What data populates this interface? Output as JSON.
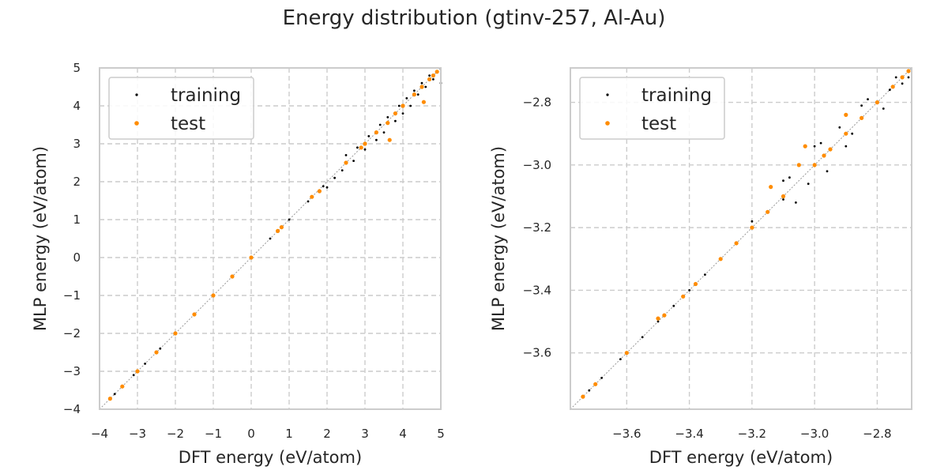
{
  "figure": {
    "title": "Energy distribution (gtinv-257, Al-Au)"
  },
  "colors": {
    "training": "#000000",
    "test": "#ff8c00",
    "grid": "#cccccc",
    "frame": "#cccccc",
    "diagonal": "#999999"
  },
  "chart_data": [
    {
      "type": "scatter",
      "panel": "full-range",
      "xlabel": "DFT energy (eV/atom)",
      "ylabel": "MLP energy (eV/atom)",
      "xlim": [
        -4,
        5
      ],
      "ylim": [
        -4,
        5
      ],
      "xticks": [
        -4,
        -3,
        -2,
        -1,
        0,
        1,
        2,
        3,
        4,
        5
      ],
      "yticks": [
        -4,
        -3,
        -2,
        -1,
        0,
        1,
        2,
        3,
        4,
        5
      ],
      "xtick_labels": [
        "−4",
        "−3",
        "−2",
        "−1",
        "0",
        "1",
        "2",
        "3",
        "4",
        "5"
      ],
      "ytick_labels": [
        "−4",
        "−3",
        "−2",
        "−1",
        "0",
        "1",
        "2",
        "3",
        "4",
        "5"
      ],
      "grid": true,
      "legend_position": "top-left",
      "diagonal": true,
      "series": [
        {
          "name": "training",
          "points": [
            [
              -3.72,
              -3.72
            ],
            [
              -3.6,
              -3.6
            ],
            [
              -3.4,
              -3.41
            ],
            [
              -3.1,
              -3.1
            ],
            [
              -2.8,
              -2.8
            ],
            [
              -2.4,
              -2.4
            ],
            [
              -2.0,
              -2.0
            ],
            [
              -1.5,
              -1.5
            ],
            [
              -1.0,
              -1.0
            ],
            [
              -0.5,
              -0.5
            ],
            [
              0.0,
              0.0
            ],
            [
              0.5,
              0.5
            ],
            [
              1.0,
              1.0
            ],
            [
              1.5,
              1.48
            ],
            [
              1.9,
              1.88
            ],
            [
              2.0,
              1.85
            ],
            [
              2.2,
              2.1
            ],
            [
              2.4,
              2.3
            ],
            [
              2.5,
              2.7
            ],
            [
              2.7,
              2.55
            ],
            [
              2.8,
              2.9
            ],
            [
              3.0,
              2.85
            ],
            [
              3.1,
              3.2
            ],
            [
              3.3,
              3.1
            ],
            [
              3.4,
              3.5
            ],
            [
              3.5,
              3.3
            ],
            [
              3.6,
              3.7
            ],
            [
              3.8,
              3.6
            ],
            [
              3.9,
              4.0
            ],
            [
              4.0,
              3.8
            ],
            [
              4.1,
              4.2
            ],
            [
              4.2,
              4.0
            ],
            [
              4.3,
              4.4
            ],
            [
              4.4,
              4.3
            ],
            [
              4.5,
              4.6
            ],
            [
              4.6,
              4.5
            ],
            [
              4.7,
              4.8
            ],
            [
              4.8,
              4.7
            ],
            [
              4.9,
              4.9
            ],
            [
              5.0,
              4.6
            ]
          ]
        },
        {
          "name": "test",
          "points": [
            [
              -3.72,
              -3.72
            ],
            [
              -3.4,
              -3.4
            ],
            [
              -3.0,
              -3.0
            ],
            [
              -2.5,
              -2.5
            ],
            [
              -2.0,
              -2.0
            ],
            [
              -1.5,
              -1.5
            ],
            [
              -1.0,
              -1.0
            ],
            [
              -0.5,
              -0.5
            ],
            [
              0.0,
              0.0
            ],
            [
              0.7,
              0.7
            ],
            [
              0.8,
              0.8
            ],
            [
              1.6,
              1.6
            ],
            [
              1.8,
              1.75
            ],
            [
              2.5,
              2.5
            ],
            [
              2.9,
              2.9
            ],
            [
              3.0,
              3.0
            ],
            [
              3.3,
              3.3
            ],
            [
              3.6,
              3.55
            ],
            [
              3.65,
              3.1
            ],
            [
              3.8,
              3.8
            ],
            [
              4.0,
              4.0
            ],
            [
              4.3,
              4.3
            ],
            [
              4.5,
              4.5
            ],
            [
              4.55,
              4.1
            ],
            [
              4.7,
              4.7
            ],
            [
              4.8,
              4.8
            ],
            [
              4.9,
              4.9
            ]
          ]
        }
      ]
    },
    {
      "type": "scatter",
      "panel": "low-energy-zoom",
      "xlabel": "DFT energy (eV/atom)",
      "ylabel": "MLP energy (eV/atom)",
      "xlim": [
        -3.78,
        -2.69
      ],
      "ylim": [
        -3.78,
        -2.69
      ],
      "xticks": [
        -3.6,
        -3.4,
        -3.2,
        -3.0,
        -2.8
      ],
      "yticks": [
        -3.6,
        -3.4,
        -3.2,
        -3.0,
        -2.8
      ],
      "xtick_labels": [
        "−3.6",
        "−3.4",
        "−3.2",
        "−3.0",
        "−2.8"
      ],
      "ytick_labels": [
        "−3.6",
        "−3.4",
        "−3.2",
        "−3.0",
        "−2.8"
      ],
      "grid": true,
      "legend_position": "top-left",
      "diagonal": true,
      "series": [
        {
          "name": "training",
          "points": [
            [
              -3.72,
              -3.72
            ],
            [
              -3.68,
              -3.68
            ],
            [
              -3.62,
              -3.62
            ],
            [
              -3.6,
              -3.6
            ],
            [
              -3.55,
              -3.55
            ],
            [
              -3.5,
              -3.5
            ],
            [
              -3.45,
              -3.45
            ],
            [
              -3.4,
              -3.4
            ],
            [
              -3.35,
              -3.35
            ],
            [
              -3.3,
              -3.3
            ],
            [
              -3.25,
              -3.25
            ],
            [
              -3.2,
              -3.2
            ],
            [
              -3.15,
              -3.15
            ],
            [
              -3.1,
              -3.11
            ],
            [
              -3.08,
              -3.04
            ],
            [
              -3.06,
              -3.12
            ],
            [
              -3.05,
              -3.0
            ],
            [
              -3.02,
              -3.06
            ],
            [
              -3.0,
              -3.0
            ],
            [
              -2.98,
              -2.93
            ],
            [
              -2.96,
              -3.02
            ],
            [
              -2.95,
              -2.95
            ],
            [
              -2.92,
              -2.88
            ],
            [
              -2.9,
              -2.94
            ],
            [
              -2.88,
              -2.9
            ],
            [
              -2.85,
              -2.85
            ],
            [
              -2.83,
              -2.79
            ],
            [
              -2.8,
              -2.8
            ],
            [
              -2.78,
              -2.82
            ],
            [
              -2.76,
              -2.76
            ],
            [
              -2.74,
              -2.72
            ],
            [
              -2.72,
              -2.74
            ],
            [
              -2.7,
              -2.7
            ],
            [
              -3.2,
              -3.18
            ],
            [
              -3.1,
              -3.05
            ],
            [
              -3.0,
              -2.94
            ],
            [
              -2.85,
              -2.81
            ],
            [
              -2.7,
              -2.72
            ]
          ]
        },
        {
          "name": "test",
          "points": [
            [
              -3.74,
              -3.74
            ],
            [
              -3.7,
              -3.7
            ],
            [
              -3.6,
              -3.6
            ],
            [
              -3.5,
              -3.49
            ],
            [
              -3.48,
              -3.48
            ],
            [
              -3.42,
              -3.42
            ],
            [
              -3.38,
              -3.38
            ],
            [
              -3.3,
              -3.3
            ],
            [
              -3.25,
              -3.25
            ],
            [
              -3.2,
              -3.2
            ],
            [
              -3.14,
              -3.07
            ],
            [
              -3.15,
              -3.15
            ],
            [
              -3.1,
              -3.1
            ],
            [
              -3.05,
              -3.0
            ],
            [
              -3.03,
              -2.94
            ],
            [
              -3.0,
              -3.0
            ],
            [
              -2.97,
              -2.97
            ],
            [
              -2.95,
              -2.95
            ],
            [
              -2.9,
              -2.84
            ],
            [
              -2.9,
              -2.9
            ],
            [
              -2.85,
              -2.85
            ],
            [
              -2.8,
              -2.8
            ],
            [
              -2.75,
              -2.75
            ],
            [
              -2.72,
              -2.72
            ],
            [
              -2.7,
              -2.7
            ]
          ]
        }
      ]
    }
  ]
}
